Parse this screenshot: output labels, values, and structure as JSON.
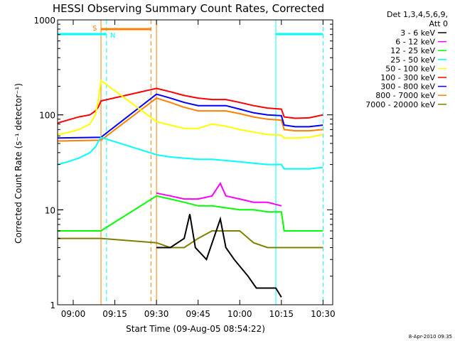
{
  "chart_data": {
    "type": "line",
    "title": "HESSI Observing Summary Count Rates, Corrected",
    "xlabel": "Start Time (09-Aug-05 08:54:22)",
    "ylabel": "Corrected Count Rate (s⁻¹ detector⁻¹)",
    "yscale": "log",
    "ylim": [
      1,
      1000
    ],
    "xlim": [
      "08:54:22",
      "10:33:30"
    ],
    "x_ticks": [
      "09:00",
      "09:15",
      "09:30",
      "09:45",
      "10:00",
      "10:15",
      "10:30"
    ],
    "y_ticks": [
      "1",
      "10",
      "100",
      "1000"
    ],
    "legend_header": [
      "Det 1,3,4,5,6,9,",
      "Att 0"
    ],
    "legend_placement": "right",
    "footer_date": "8-Apr-2010 09:35",
    "series": [
      {
        "name": "3 - 6 keV",
        "color": "#000000",
        "x": [
          "09:30",
          "09:35",
          "09:40",
          "09:42",
          "09:44",
          "09:48",
          "09:53",
          "09:55",
          "09:58",
          "10:03",
          "10:06",
          "10:10",
          "10:13",
          "10:15"
        ],
        "values": [
          4,
          4,
          5,
          9,
          4,
          3,
          8,
          4,
          3,
          2,
          1.5,
          1.5,
          1.5,
          1.2
        ]
      },
      {
        "name": "6 - 12 keV",
        "color": "#ff00ff",
        "x": [
          "09:30",
          "09:35",
          "09:40",
          "09:45",
          "09:50",
          "09:53",
          "09:55",
          "10:00",
          "10:05",
          "10:10",
          "10:15"
        ],
        "values": [
          15,
          14,
          13,
          13,
          14,
          19,
          14,
          13,
          12,
          12,
          11
        ]
      },
      {
        "name": "12 - 25 keV",
        "color": "#00ff00",
        "x": [
          "08:54:22",
          "09:10",
          "09:30",
          "09:35",
          "09:40",
          "09:45",
          "09:50",
          "10:00",
          "10:05",
          "10:10",
          "10:15",
          "10:16",
          "10:20",
          "10:25",
          "10:30"
        ],
        "values": [
          6,
          6,
          14,
          13,
          12,
          11,
          11,
          10,
          10,
          9.5,
          9.5,
          6,
          6,
          6,
          6
        ]
      },
      {
        "name": "25 - 50 keV",
        "color": "#00ffff",
        "x": [
          "08:54:22",
          "08:58",
          "09:02",
          "09:06",
          "09:08",
          "09:09",
          "09:10",
          "09:30",
          "09:35",
          "09:40",
          "09:45",
          "09:50",
          "09:55",
          "10:00",
          "10:05",
          "10:10",
          "10:15",
          "10:16",
          "10:20",
          "10:25",
          "10:30"
        ],
        "values": [
          30,
          32,
          35,
          40,
          46,
          52,
          58,
          38,
          36,
          35,
          34,
          34,
          33,
          32,
          31,
          30,
          30,
          27,
          27,
          27,
          28
        ]
      },
      {
        "name": "50 - 100 keV",
        "color": "#ffff00",
        "x": [
          "08:54:22",
          "08:58",
          "09:02",
          "09:06",
          "09:08",
          "09:09",
          "09:10",
          "09:30",
          "09:35",
          "09:40",
          "09:45",
          "09:50",
          "09:55",
          "10:00",
          "10:05",
          "10:10",
          "10:15",
          "10:16",
          "10:20",
          "10:25",
          "10:30"
        ],
        "values": [
          62,
          65,
          70,
          80,
          100,
          140,
          230,
          85,
          78,
          72,
          72,
          80,
          76,
          70,
          66,
          62,
          61,
          57,
          57,
          58,
          62
        ]
      },
      {
        "name": "100 - 300 keV",
        "color": "#ff0000",
        "x": [
          "08:54:22",
          "08:58",
          "09:02",
          "09:06",
          "09:08",
          "09:09",
          "09:10",
          "09:30",
          "09:35",
          "09:40",
          "09:45",
          "09:50",
          "09:55",
          "10:00",
          "10:05",
          "10:10",
          "10:15",
          "10:16",
          "10:20",
          "10:25",
          "10:30"
        ],
        "values": [
          82,
          88,
          95,
          100,
          110,
          120,
          140,
          190,
          175,
          160,
          150,
          145,
          145,
          135,
          125,
          118,
          115,
          95,
          92,
          93,
          100
        ]
      },
      {
        "name": "300 - 800 keV",
        "color": "#0000ff",
        "x": [
          "08:54:22",
          "09:10",
          "09:30",
          "09:35",
          "09:40",
          "09:45",
          "09:50",
          "09:55",
          "10:00",
          "10:05",
          "10:10",
          "10:15",
          "10:16",
          "10:20",
          "10:25",
          "10:30"
        ],
        "values": [
          57,
          58,
          165,
          150,
          135,
          125,
          125,
          125,
          115,
          105,
          100,
          98,
          78,
          75,
          75,
          78
        ]
      },
      {
        "name": "800 - 7000 keV",
        "color": "#ff8000",
        "x": [
          "08:54:22",
          "09:10",
          "09:30",
          "09:35",
          "09:40",
          "09:45",
          "09:50",
          "09:55",
          "10:00",
          "10:05",
          "10:10",
          "10:15",
          "10:16",
          "10:20",
          "10:25",
          "10:30"
        ],
        "values": [
          53,
          54,
          150,
          135,
          120,
          110,
          110,
          110,
          103,
          95,
          90,
          88,
          70,
          68,
          68,
          70
        ]
      },
      {
        "name": "7000 - 20000 keV",
        "color": "#808000",
        "x": [
          "08:54:22",
          "09:10",
          "09:30",
          "09:35",
          "09:40",
          "09:45",
          "09:50",
          "09:55",
          "10:00",
          "10:05",
          "10:10",
          "10:15",
          "10:16",
          "10:20",
          "10:25",
          "10:30"
        ],
        "values": [
          5,
          5,
          4.5,
          4,
          4,
          5,
          6,
          6,
          6,
          4.5,
          4,
          4,
          4,
          4,
          4,
          4
        ]
      }
    ],
    "flags": [
      {
        "label": "S",
        "color": "#ff8000",
        "start": "09:10",
        "end": "09:28"
      },
      {
        "label": "N",
        "color": "#00ffff",
        "start": "08:54:22",
        "end": "09:12"
      },
      {
        "label": "",
        "color": "#00ffff",
        "start": "10:13",
        "end": "10:30"
      }
    ],
    "vertical_lines": [
      {
        "time": "09:10",
        "color": "#ff8000",
        "style": "solid"
      },
      {
        "time": "09:12",
        "color": "#00ffff",
        "style": "dashed"
      },
      {
        "time": "09:28",
        "color": "#ff8000",
        "style": "dashed"
      },
      {
        "time": "09:30",
        "color": "#ff8000",
        "style": "solid"
      },
      {
        "time": "10:13",
        "color": "#00ffff",
        "style": "solid"
      },
      {
        "time": "10:30",
        "color": "#00ffff",
        "style": "dashed"
      }
    ]
  }
}
